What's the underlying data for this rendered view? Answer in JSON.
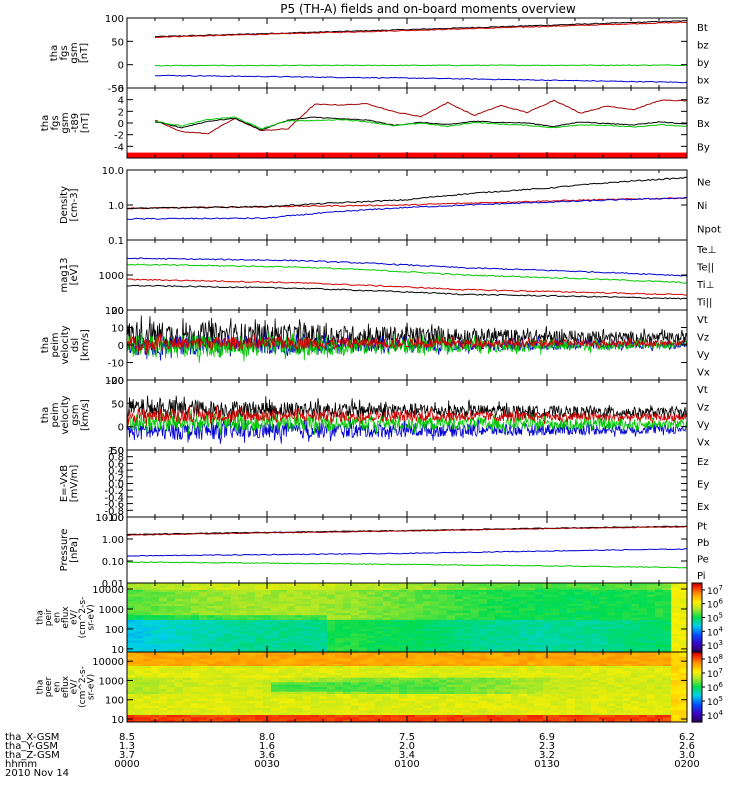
{
  "title": "P5 (TH-A) fields and on-board moments overview",
  "chart_data": [
    {
      "id": "p1",
      "type": "line",
      "ylabel": [
        "tha",
        "fgs",
        "gsm",
        "[nT]"
      ],
      "ylim": [
        -50,
        100
      ],
      "yticks": [
        "100",
        "50",
        "0",
        "-50"
      ],
      "yticks_v": [
        100,
        50,
        0,
        -50
      ],
      "legend": [
        {
          "name": "Bt",
          "color": "#000000"
        },
        {
          "name": "bz",
          "color": "#d00000"
        },
        {
          "name": "by",
          "color": "#00c800"
        },
        {
          "name": "bx",
          "color": "#0000d0"
        }
      ],
      "series": [
        {
          "name": "Bt",
          "color": "#000000",
          "x": [
            0.0,
            0.5,
            1.0
          ],
          "y": [
            60,
            76,
            94
          ]
        },
        {
          "name": "bz",
          "color": "#d00000",
          "x": [
            0.0,
            0.5,
            1.0
          ],
          "y": [
            59,
            74,
            91
          ]
        },
        {
          "name": "by",
          "color": "#00c800",
          "x": [
            0.0,
            1.0
          ],
          "y": [
            -2,
            -1
          ]
        },
        {
          "name": "bx",
          "color": "#0000d0",
          "x": [
            0.0,
            0.5,
            1.0
          ],
          "y": [
            -23,
            -29,
            -38
          ]
        }
      ],
      "x_start": 0.05
    },
    {
      "id": "p2",
      "type": "line",
      "ylabel": [
        "tha",
        "fgs",
        "gsm",
        "-t89",
        "[nT]"
      ],
      "ylim": [
        -6,
        6
      ],
      "yticks": [
        "6",
        "4",
        "2",
        "0",
        "-2",
        "-4"
      ],
      "yticks_v": [
        6,
        4,
        2,
        0,
        -2,
        -4
      ],
      "legend": [
        {
          "name": "Bz",
          "color": "#a00000"
        },
        {
          "name": "Bx",
          "color": "#000000"
        },
        {
          "name": "By",
          "color": "#00c800"
        }
      ],
      "series": [
        {
          "name": "Bz",
          "color": "#a00000",
          "x": [
            0.0,
            0.05,
            0.1,
            0.15,
            0.2,
            0.25,
            0.3,
            0.35,
            0.4,
            0.45,
            0.5,
            0.55,
            0.6,
            0.65,
            0.7,
            0.75,
            0.8,
            0.85,
            0.9,
            0.95,
            1.0
          ],
          "y": [
            0.5,
            -1.5,
            -1.8,
            0.8,
            -1.3,
            -1.0,
            3.2,
            3.1,
            3.3,
            1.9,
            1.1,
            3.5,
            1.3,
            3.0,
            1.8,
            3.9,
            1.7,
            2.9,
            2.3,
            3.9,
            3.8
          ]
        },
        {
          "name": "Bx",
          "color": "#000000",
          "x": [
            0.0,
            0.05,
            0.1,
            0.15,
            0.2,
            0.25,
            0.3,
            0.35,
            0.4,
            0.45,
            0.5,
            0.55,
            0.6,
            0.65,
            0.7,
            0.75,
            0.8,
            0.85,
            0.9,
            0.95,
            1.0
          ],
          "y": [
            0.2,
            -0.8,
            0.3,
            0.8,
            -1.2,
            0.5,
            1.0,
            0.7,
            0.5,
            -0.4,
            0.1,
            -0.3,
            0.3,
            0.1,
            0.0,
            -0.6,
            0.2,
            -0.1,
            -0.3,
            0.2,
            -0.2
          ]
        },
        {
          "name": "By",
          "color": "#00c800",
          "x": [
            0.0,
            0.05,
            0.1,
            0.15,
            0.2,
            0.25,
            0.3,
            0.35,
            0.4,
            0.45,
            0.5,
            0.55,
            0.6,
            0.65,
            0.7,
            0.75,
            0.8,
            0.85,
            0.9,
            0.95,
            1.0
          ],
          "y": [
            0.3,
            -0.5,
            0.6,
            1.0,
            -1.0,
            0.4,
            0.4,
            0.6,
            0.2,
            -0.5,
            0.0,
            -0.6,
            0.1,
            -0.2,
            -0.4,
            -0.8,
            -0.3,
            -0.4,
            -0.7,
            -0.3,
            -0.6
          ]
        }
      ],
      "bar": {
        "color": "#ff0000",
        "y": -5.5
      },
      "x_start": 0.05
    },
    {
      "id": "p3",
      "type": "line",
      "scale": "log",
      "ylabel": [
        "Density",
        "[cm-3]"
      ],
      "ylim": [
        0.1,
        10
      ],
      "yticks": [
        "10.0",
        "1.0",
        "0.1"
      ],
      "yticks_v": [
        10,
        1,
        0.1
      ],
      "legend": [
        {
          "name": "Ne",
          "color": "#d00000"
        },
        {
          "name": "Ni",
          "color": "#000000"
        },
        {
          "name": "Npot",
          "color": "#0000d0"
        }
      ],
      "series": [
        {
          "name": "Ne",
          "color": "#d00000",
          "x": [
            0.0,
            0.5,
            1.0
          ],
          "y": [
            0.8,
            1.0,
            1.6
          ]
        },
        {
          "name": "Ni",
          "color": "#000000",
          "x": [
            0.0,
            0.25,
            0.5,
            0.75,
            1.0
          ],
          "y": [
            0.8,
            0.9,
            1.4,
            3.0,
            6.0
          ]
        },
        {
          "name": "Npot",
          "color": "#0000d0",
          "x": [
            0.0,
            0.25,
            0.5,
            0.75,
            1.0
          ],
          "y": [
            0.4,
            0.42,
            0.85,
            1.2,
            1.6
          ]
        }
      ],
      "x_start": 0.0
    },
    {
      "id": "p4",
      "type": "line",
      "scale": "log",
      "ylabel": [
        "mag13",
        "[eV]"
      ],
      "ylim": [
        100,
        10000
      ],
      "yticks": [
        "1000",
        "100"
      ],
      "yticks_v": [
        1000,
        100
      ],
      "legend": [
        {
          "name": "Te⊥",
          "color": "#d00000"
        },
        {
          "name": "Te||",
          "color": "#000000"
        },
        {
          "name": "Ti⊥",
          "color": "#0000d0"
        },
        {
          "name": "Ti||",
          "color": "#00c800"
        }
      ],
      "series": [
        {
          "name": "Ti⊥",
          "color": "#0000d0",
          "x": [
            0.0,
            0.3,
            0.6,
            1.0
          ],
          "y": [
            3000,
            2600,
            1600,
            950
          ]
        },
        {
          "name": "Ti||",
          "color": "#00c800",
          "x": [
            0.0,
            0.3,
            0.6,
            1.0
          ],
          "y": [
            2000,
            1700,
            1000,
            600
          ]
        },
        {
          "name": "Te⊥",
          "color": "#d00000",
          "x": [
            0.0,
            0.3,
            0.6,
            1.0
          ],
          "y": [
            750,
            600,
            380,
            270
          ]
        },
        {
          "name": "Te||",
          "color": "#000000",
          "x": [
            0.0,
            0.3,
            0.6,
            1.0
          ],
          "y": [
            500,
            420,
            280,
            210
          ]
        }
      ],
      "x_start": 0.0
    },
    {
      "id": "p5",
      "type": "line",
      "ylabel": [
        "tha",
        "peim",
        "velocity",
        "dsl",
        "[km/s]"
      ],
      "ylim": [
        -20,
        20
      ],
      "yticks": [
        "20",
        "10",
        "0",
        "-10",
        "-20"
      ],
      "yticks_v": [
        20,
        10,
        0,
        -10,
        -20
      ],
      "legend": [
        {
          "name": "Vt",
          "color": "#000000"
        },
        {
          "name": "Vz",
          "color": "#d00000"
        },
        {
          "name": "Vy",
          "color": "#00c800"
        },
        {
          "name": "Vx",
          "color": "#0000d0"
        }
      ],
      "noise": [
        {
          "name": "Vt",
          "color": "#000000",
          "center": [
            6,
            4
          ],
          "amp": [
            8,
            3
          ]
        },
        {
          "name": "Vx",
          "color": "#0000d0",
          "center": [
            0,
            0
          ],
          "amp": [
            6,
            2
          ]
        },
        {
          "name": "Vy",
          "color": "#00c800",
          "center": [
            -1,
            0
          ],
          "amp": [
            7,
            2
          ]
        },
        {
          "name": "Vz",
          "color": "#d00000",
          "center": [
            1,
            1
          ],
          "amp": [
            4,
            1.5
          ]
        }
      ],
      "x_start": 0.0
    },
    {
      "id": "p6",
      "type": "line",
      "ylabel": [
        "tha",
        "peim",
        "velocity",
        "gsm",
        "[km/s]"
      ],
      "ylim": [
        -50,
        100
      ],
      "yticks": [
        "100",
        "50",
        "0",
        "-50"
      ],
      "yticks_v": [
        100,
        50,
        0,
        -50
      ],
      "legend": [
        {
          "name": "Vt",
          "color": "#000000"
        },
        {
          "name": "Vz",
          "color": "#d00000"
        },
        {
          "name": "Vy",
          "color": "#00c800"
        },
        {
          "name": "Vx",
          "color": "#0000d0"
        }
      ],
      "noise": [
        {
          "name": "Vt",
          "color": "#000000",
          "center": [
            40,
            30
          ],
          "amp": [
            20,
            10
          ]
        },
        {
          "name": "Vx",
          "color": "#0000d0",
          "center": [
            -10,
            -5
          ],
          "amp": [
            20,
            10
          ]
        },
        {
          "name": "Vy",
          "color": "#00c800",
          "center": [
            10,
            5
          ],
          "amp": [
            20,
            10
          ]
        },
        {
          "name": "Vz",
          "color": "#d00000",
          "center": [
            25,
            20
          ],
          "amp": [
            15,
            8
          ]
        }
      ],
      "x_start": 0.0
    },
    {
      "id": "p7",
      "type": "line",
      "ylabel": [
        "E=-VxB",
        "[mV/m]"
      ],
      "ylim": [
        -1.0,
        1.0
      ],
      "yticks": [
        "1.0",
        "0.8",
        "0.6",
        "0.4",
        "0.2",
        "0.0",
        "-0.2",
        "-0.4",
        "-0.6",
        "-0.8",
        "-1.0"
      ],
      "yticks_v": [
        1.0,
        0.8,
        0.6,
        0.4,
        0.2,
        0.0,
        -0.2,
        -0.4,
        -0.6,
        -0.8,
        -1.0
      ],
      "legend": [
        {
          "name": "Ez",
          "color": "#d00000"
        },
        {
          "name": "Ey",
          "color": "#00c800"
        },
        {
          "name": "Ex",
          "color": "#0000d0"
        }
      ],
      "series": [],
      "x_start": 0.0
    },
    {
      "id": "p8",
      "type": "line",
      "scale": "log",
      "ylabel": [
        "Pressure",
        "[nPa]"
      ],
      "ylim": [
        0.01,
        10
      ],
      "yticks": [
        "10.00",
        "1.00",
        "0.10",
        "0.01"
      ],
      "yticks_v": [
        10,
        1,
        0.1,
        0.01
      ],
      "legend": [
        {
          "name": "Pt",
          "color": "#000000"
        },
        {
          "name": "Pb",
          "color": "#a00000"
        },
        {
          "name": "Pe",
          "color": "#00c800"
        },
        {
          "name": "Pi",
          "color": "#0000d0"
        }
      ],
      "series": [
        {
          "name": "Pt",
          "color": "#000000",
          "x": [
            0.0,
            0.5,
            1.0
          ],
          "y": [
            1.6,
            2.4,
            3.8
          ]
        },
        {
          "name": "Pb",
          "color": "#a00000",
          "x": [
            0.0,
            0.5,
            1.0
          ],
          "y": [
            1.5,
            2.3,
            3.6
          ]
        },
        {
          "name": "Pi",
          "color": "#0000d0",
          "x": [
            0.0,
            0.5,
            1.0
          ],
          "y": [
            0.17,
            0.22,
            0.35
          ]
        },
        {
          "name": "Pe",
          "color": "#00c800",
          "x": [
            0.0,
            0.5,
            1.0
          ],
          "y": [
            0.09,
            0.07,
            0.05
          ]
        }
      ],
      "x_start": 0.0
    },
    {
      "id": "p9",
      "type": "heatmap",
      "ylabel": [
        "tha",
        "peir",
        "en",
        "eflux",
        "eV/",
        "(cm^2-s-",
        "sr-eV)"
      ],
      "scale": "log",
      "ylim": [
        7,
        20000
      ],
      "yticks": [
        "10000",
        "1000",
        "100",
        "10"
      ],
      "yticks_v": [
        10000,
        1000,
        100,
        10
      ],
      "colorbar": {
        "ticks": [
          "10^7",
          "10^6",
          "10^5",
          "10^4",
          "10^3"
        ],
        "exp": [
          7,
          6,
          5,
          4,
          3
        ],
        "min": 2.5,
        "max": 7.5
      }
    },
    {
      "id": "p10",
      "type": "heatmap",
      "ylabel": [
        "tha",
        "peer",
        "en",
        "eflux",
        "eV/",
        "(cm^2-s-",
        "sr-eV)"
      ],
      "scale": "log",
      "ylim": [
        7,
        30000
      ],
      "yticks": [
        "10000",
        "1000",
        "100",
        "10"
      ],
      "yticks_v": [
        10000,
        1000,
        100,
        10
      ],
      "colorbar": {
        "ticks": [
          "10^8",
          "10^7",
          "10^6",
          "10^5",
          "10^4"
        ],
        "exp": [
          8,
          7,
          6,
          5,
          4
        ],
        "min": 3.5,
        "max": 8.5
      }
    }
  ],
  "xaxis": {
    "rows": [
      {
        "label": "tha_X-GSM",
        "values": [
          "8.5",
          "8.0",
          "7.5",
          "6.9",
          "6.2"
        ]
      },
      {
        "label": "tha_Y-GSM",
        "values": [
          "1.3",
          "1.6",
          "2.0",
          "2.3",
          "2.6"
        ]
      },
      {
        "label": "tha_Z-GSM",
        "values": [
          "3.7",
          "3.6",
          "3.4",
          "3.2",
          "3.0"
        ]
      },
      {
        "label": "hhmm",
        "values": [
          "0000",
          "0030",
          "0100",
          "0130",
          "0200"
        ]
      }
    ],
    "date": "2010 Nov 14"
  }
}
